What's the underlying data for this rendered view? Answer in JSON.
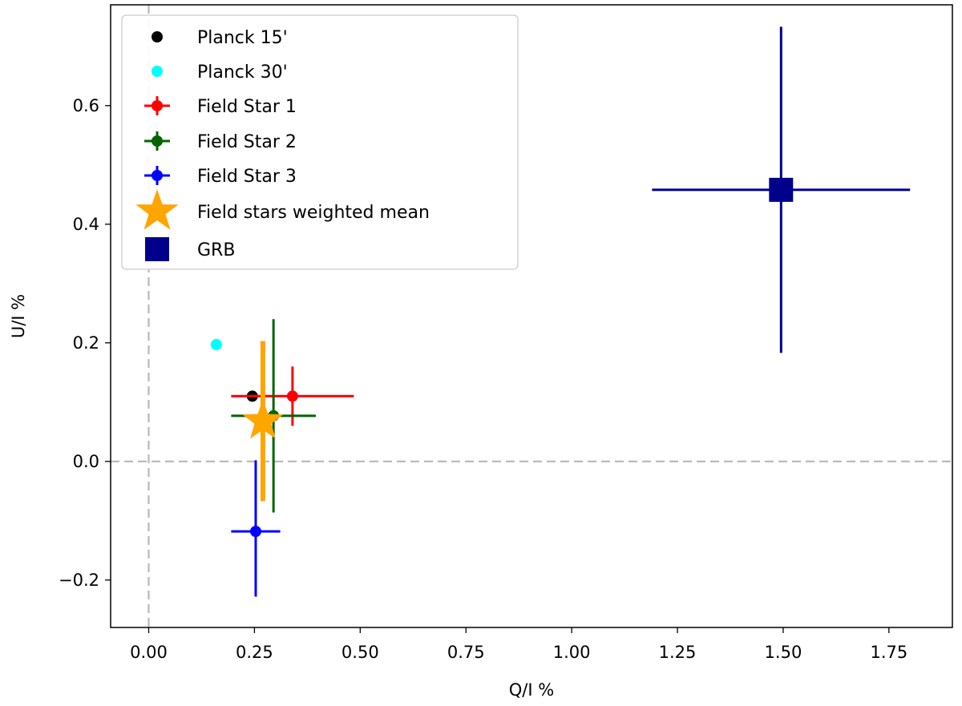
{
  "chart_data": {
    "type": "scatter",
    "title": "",
    "xlabel": "Q/I %",
    "ylabel": "U/I %",
    "xlim": [
      -0.09,
      1.9
    ],
    "ylim": [
      -0.28,
      0.77
    ],
    "xticks": [
      0.0,
      0.25,
      0.5,
      0.75,
      1.0,
      1.25,
      1.5,
      1.75
    ],
    "xtick_labels": [
      "0.00",
      "0.25",
      "0.50",
      "0.75",
      "1.00",
      "1.25",
      "1.50",
      "1.75"
    ],
    "yticks": [
      -0.2,
      0.0,
      0.2,
      0.4,
      0.6
    ],
    "ytick_labels": [
      "−0.2",
      "0.0",
      "0.2",
      "0.4",
      "0.6"
    ],
    "reference_lines": {
      "x": 0.0,
      "y": 0.0,
      "style": "dashed",
      "color": "#b8b8b8"
    },
    "legend_position": "top-left",
    "series": [
      {
        "name": "Planck 15'",
        "marker": "circle",
        "color": "#000000",
        "x": 0.245,
        "y": 0.11
      },
      {
        "name": "Planck 30'",
        "marker": "circle",
        "color": "#00ffff",
        "x": 0.16,
        "y": 0.197
      },
      {
        "name": "Field Star 1",
        "marker": "circle",
        "color": "#ff0000",
        "x": 0.34,
        "y": 0.11,
        "xerr": [
          0.145,
          0.145
        ],
        "yerr": [
          0.05,
          0.05
        ]
      },
      {
        "name": "Field Star 2",
        "marker": "circle",
        "color": "#006400",
        "x": 0.295,
        "y": 0.077,
        "xerr": [
          0.1,
          0.1
        ],
        "yerr": [
          0.163,
          0.163
        ]
      },
      {
        "name": "Field Star 3",
        "marker": "circle",
        "color": "#0000ff",
        "x": 0.253,
        "y": -0.118,
        "xerr": [
          0.058,
          0.058
        ],
        "yerr": [
          0.11,
          0.12
        ]
      },
      {
        "name": "Field stars weighted mean",
        "marker": "star",
        "color": "#ffa500",
        "x": 0.27,
        "y": 0.068,
        "yerr": [
          0.135,
          0.135
        ]
      },
      {
        "name": "GRB",
        "marker": "square",
        "color": "#00008b",
        "x": 1.495,
        "y": 0.458,
        "xerr": [
          0.305,
          0.305
        ],
        "yerr": [
          0.275,
          0.275
        ]
      }
    ]
  }
}
